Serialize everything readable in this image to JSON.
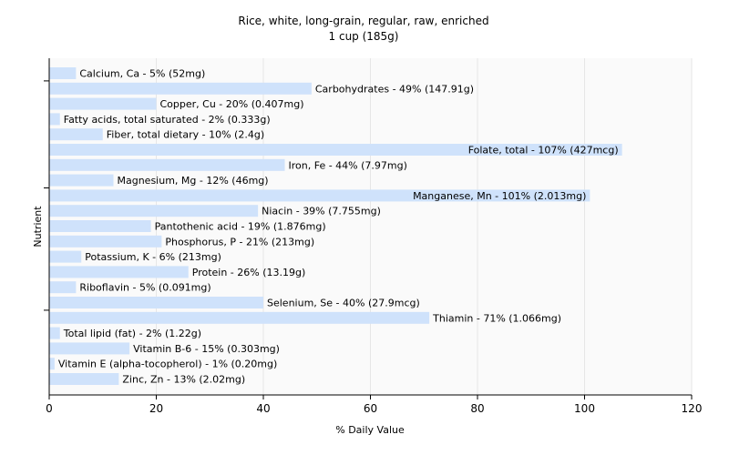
{
  "chart_data": {
    "type": "bar",
    "orientation": "horizontal",
    "title": "Rice, white, long-grain, regular, raw, enriched",
    "subtitle": "1 cup (185g)",
    "xlabel": "% Daily Value",
    "ylabel": "Nutrient",
    "xlim": [
      0,
      120
    ],
    "xticks": [
      0,
      20,
      40,
      60,
      80,
      100,
      120
    ],
    "grid": true,
    "colors": {
      "bar": "#cfe2fb",
      "grid": "#e6e6e6",
      "axis": "#000000",
      "plot_bg": "#fafafa"
    },
    "categories": [
      "Calcium, Ca",
      "Carbohydrates",
      "Copper, Cu",
      "Fatty acids, total saturated",
      "Fiber, total dietary",
      "Folate, total",
      "Iron, Fe",
      "Magnesium, Mg",
      "Manganese, Mn",
      "Niacin",
      "Pantothenic acid",
      "Phosphorus, P",
      "Potassium, K",
      "Protein",
      "Riboflavin",
      "Selenium, Se",
      "Thiamin",
      "Total lipid (fat)",
      "Vitamin B-6",
      "Vitamin E (alpha-tocopherol)",
      "Zinc, Zn"
    ],
    "values": [
      5,
      49,
      20,
      2,
      10,
      107,
      44,
      12,
      101,
      39,
      19,
      21,
      6,
      26,
      5,
      40,
      71,
      2,
      15,
      1,
      13
    ],
    "labels": [
      "Calcium, Ca - 5% (52mg)",
      "Carbohydrates - 49% (147.91g)",
      "Copper, Cu - 20% (0.407mg)",
      "Fatty acids, total saturated - 2% (0.333g)",
      "Fiber, total dietary - 10% (2.4g)",
      "Folate, total - 107% (427mcg)",
      "Iron, Fe - 44% (7.97mg)",
      "Magnesium, Mg - 12% (46mg)",
      "Manganese, Mn - 101% (2.013mg)",
      "Niacin - 39% (7.755mg)",
      "Pantothenic acid - 19% (1.876mg)",
      "Phosphorus, P - 21% (213mg)",
      "Potassium, K - 6% (213mg)",
      "Protein - 26% (13.19g)",
      "Riboflavin - 5% (0.091mg)",
      "Selenium, Se - 40% (27.9mcg)",
      "Thiamin - 71% (1.066mg)",
      "Total lipid (fat) - 2% (1.22g)",
      "Vitamin B-6 - 15% (0.303mg)",
      "Vitamin E (alpha-tocopherol) - 1% (0.20mg)",
      "Zinc, Zn - 13% (2.02mg)"
    ]
  }
}
